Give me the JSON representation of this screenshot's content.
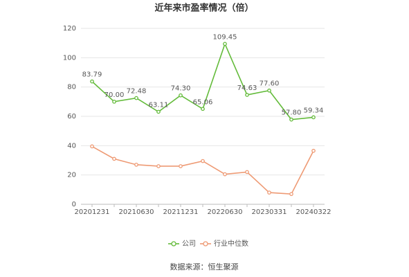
{
  "chart_data": {
    "type": "line",
    "title": "近年来市盈率情况（倍）",
    "categories": [
      "20201231",
      null,
      "20210630",
      null,
      "20211231",
      null,
      "20220630",
      null,
      "20230331",
      null,
      "20240322"
    ],
    "series": [
      {
        "name": "公司",
        "color": "#63bb3a",
        "values": [
          83.79,
          70.0,
          72.48,
          63.11,
          74.3,
          65.06,
          109.45,
          74.63,
          77.6,
          57.8,
          59.34
        ],
        "value_labels": [
          "83.79",
          "70.00",
          "72.48",
          "63.11",
          "74.30",
          "65.06",
          "109.45",
          "74.63",
          "77.60",
          "57.80",
          "59.34"
        ]
      },
      {
        "name": "行业中位数",
        "color": "#ee9a74",
        "values": [
          39.5,
          31,
          27,
          26,
          26,
          29.5,
          20.5,
          22,
          8,
          7,
          36.5
        ]
      }
    ],
    "ylim": [
      0,
      120
    ],
    "yticks": [
      0,
      20,
      40,
      60,
      80,
      100,
      120
    ],
    "grid": true,
    "source": "数据来源：恒生聚源"
  }
}
